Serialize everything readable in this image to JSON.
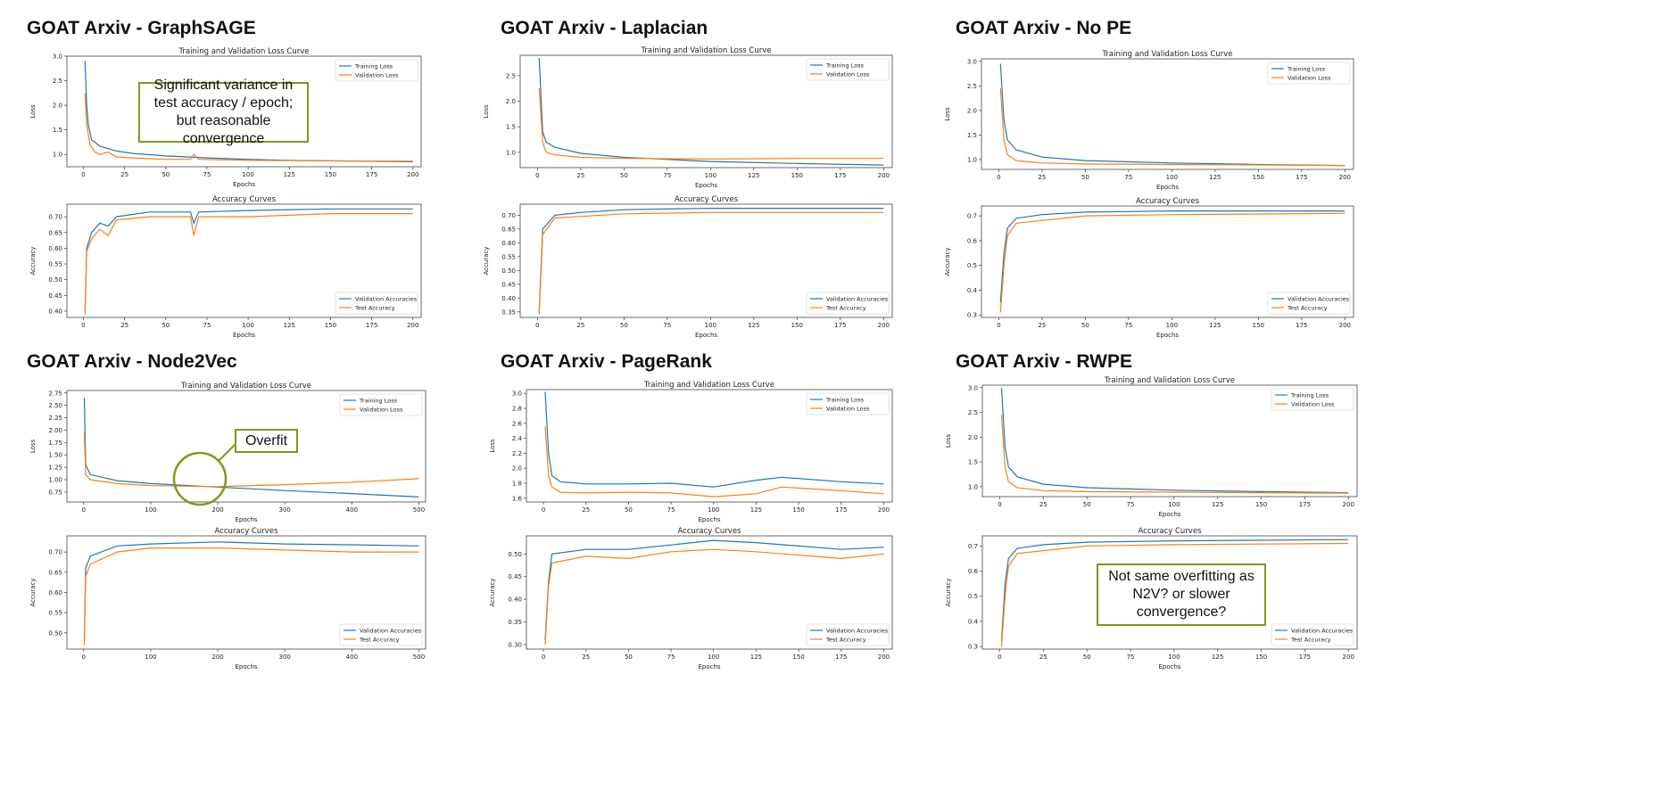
{
  "colors": {
    "series_a": "#1f77b4",
    "series_b": "#ff7f0e",
    "annotation_border": "#7a9a1a"
  },
  "panels": [
    {
      "title": "GOAT Arxiv - GraphSAGE"
    },
    {
      "title": "GOAT Arxiv - Laplacian"
    },
    {
      "title": "GOAT Arxiv - No PE"
    },
    {
      "title": "GOAT Arxiv - Node2Vec"
    },
    {
      "title": "GOAT Arxiv - PageRank"
    },
    {
      "title": "GOAT Arxiv - RWPE"
    }
  ],
  "annotations": {
    "graphsage": "Significant variance in test accuracy / epoch; but reasonable convergence",
    "node2vec": "Overfit",
    "rwpe": "Not same overfitting as N2V? or slower convergence?"
  },
  "chart_data": [
    {
      "panel": "GraphSAGE",
      "type": "line",
      "title": "Training and Validation Loss Curve",
      "xlabel": "Epochs",
      "ylabel": "Loss",
      "xlim": [
        -10,
        205
      ],
      "ylim": [
        0.75,
        3.0
      ],
      "xticks": [
        0,
        25,
        50,
        75,
        100,
        125,
        150,
        175,
        200
      ],
      "yticks": [
        1.0,
        1.5,
        2.0,
        2.5,
        3.0
      ],
      "legend": "top-right",
      "series": [
        {
          "name": "Training Loss",
          "x": [
            1,
            2,
            3,
            5,
            10,
            20,
            30,
            50,
            75,
            100,
            125,
            150,
            175,
            200
          ],
          "y": [
            2.9,
            2.0,
            1.6,
            1.3,
            1.17,
            1.07,
            1.02,
            0.97,
            0.93,
            0.9,
            0.88,
            0.87,
            0.86,
            0.85
          ]
        },
        {
          "name": "Validation Loss",
          "x": [
            1,
            2,
            4,
            7,
            10,
            15,
            20,
            30,
            50,
            65,
            67,
            70,
            100,
            150,
            200
          ],
          "y": [
            2.25,
            1.6,
            1.2,
            1.05,
            1.0,
            1.05,
            0.95,
            0.93,
            0.9,
            0.9,
            1.0,
            0.9,
            0.88,
            0.87,
            0.86
          ]
        }
      ]
    },
    {
      "panel": "GraphSAGE",
      "type": "line",
      "title": "Accuracy Curves",
      "xlabel": "Epochs",
      "ylabel": "Accuracy",
      "xlim": [
        -10,
        205
      ],
      "ylim": [
        0.38,
        0.74
      ],
      "xticks": [
        0,
        25,
        50,
        75,
        100,
        125,
        150,
        175,
        200
      ],
      "yticks": [
        0.4,
        0.45,
        0.5,
        0.55,
        0.6,
        0.65,
        0.7
      ],
      "legend": "bottom-right",
      "series": [
        {
          "name": "Validation Accuracies",
          "x": [
            1,
            2,
            5,
            10,
            15,
            20,
            40,
            65,
            67,
            70,
            100,
            150,
            200
          ],
          "y": [
            0.4,
            0.6,
            0.65,
            0.68,
            0.67,
            0.7,
            0.715,
            0.715,
            0.68,
            0.715,
            0.72,
            0.725,
            0.725
          ]
        },
        {
          "name": "Test Accuracy",
          "x": [
            1,
            2,
            5,
            10,
            15,
            20,
            40,
            65,
            67,
            70,
            100,
            150,
            200
          ],
          "y": [
            0.39,
            0.59,
            0.63,
            0.66,
            0.64,
            0.69,
            0.7,
            0.7,
            0.64,
            0.7,
            0.7,
            0.71,
            0.71
          ]
        }
      ]
    },
    {
      "panel": "Laplacian",
      "type": "line",
      "title": "Training and Validation Loss Curve",
      "xlabel": "Epochs",
      "ylabel": "Loss",
      "xlim": [
        -10,
        205
      ],
      "ylim": [
        0.7,
        2.9
      ],
      "xticks": [
        0,
        25,
        50,
        75,
        100,
        125,
        150,
        175,
        200
      ],
      "yticks": [
        1.0,
        1.5,
        2.0,
        2.5
      ],
      "legend": "top-right",
      "series": [
        {
          "name": "Training Loss",
          "x": [
            1,
            3,
            5,
            10,
            25,
            50,
            100,
            150,
            200
          ],
          "y": [
            2.85,
            1.4,
            1.2,
            1.1,
            0.98,
            0.9,
            0.82,
            0.78,
            0.75
          ]
        },
        {
          "name": "Validation Loss",
          "x": [
            1,
            3,
            5,
            10,
            25,
            50,
            100,
            150,
            200
          ],
          "y": [
            2.25,
            1.2,
            1.0,
            0.95,
            0.9,
            0.88,
            0.87,
            0.88,
            0.88
          ]
        }
      ]
    },
    {
      "panel": "Laplacian",
      "type": "line",
      "title": "Accuracy Curves",
      "xlabel": "Epochs",
      "ylabel": "Accuracy",
      "xlim": [
        -10,
        205
      ],
      "ylim": [
        0.33,
        0.74
      ],
      "xticks": [
        0,
        25,
        50,
        75,
        100,
        125,
        150,
        175,
        200
      ],
      "yticks": [
        0.35,
        0.4,
        0.45,
        0.5,
        0.55,
        0.6,
        0.65,
        0.7
      ],
      "legend": "bottom-right",
      "series": [
        {
          "name": "Validation Accuracies",
          "x": [
            1,
            3,
            10,
            25,
            50,
            100,
            200
          ],
          "y": [
            0.35,
            0.65,
            0.7,
            0.71,
            0.72,
            0.725,
            0.725
          ]
        },
        {
          "name": "Test Accuracy",
          "x": [
            1,
            3,
            10,
            50,
            100,
            200
          ],
          "y": [
            0.34,
            0.63,
            0.69,
            0.705,
            0.71,
            0.71
          ]
        }
      ]
    },
    {
      "panel": "No PE",
      "type": "line",
      "title": "Training and Validation Loss Curve",
      "xlabel": "Epochs",
      "ylabel": "Loss",
      "xlim": [
        -10,
        205
      ],
      "ylim": [
        0.8,
        3.05
      ],
      "xticks": [
        0,
        25,
        50,
        75,
        100,
        125,
        150,
        175,
        200
      ],
      "yticks": [
        1.0,
        1.5,
        2.0,
        2.5,
        3.0
      ],
      "legend": "top-right",
      "series": [
        {
          "name": "Training Loss",
          "x": [
            1,
            3,
            5,
            10,
            25,
            50,
            100,
            150,
            200
          ],
          "y": [
            2.95,
            1.8,
            1.4,
            1.2,
            1.05,
            0.98,
            0.93,
            0.9,
            0.88
          ]
        },
        {
          "name": "Validation Loss",
          "x": [
            1,
            3,
            5,
            10,
            25,
            50,
            100,
            150,
            200
          ],
          "y": [
            2.45,
            1.4,
            1.1,
            0.98,
            0.93,
            0.91,
            0.9,
            0.89,
            0.88
          ]
        }
      ]
    },
    {
      "panel": "No PE",
      "type": "line",
      "title": "Accuracy Curves",
      "xlabel": "Epochs",
      "ylabel": "Accuracy",
      "xlim": [
        -10,
        205
      ],
      "ylim": [
        0.29,
        0.74
      ],
      "xticks": [
        0,
        25,
        50,
        75,
        100,
        125,
        150,
        175,
        200
      ],
      "yticks": [
        0.3,
        0.4,
        0.5,
        0.6,
        0.7
      ],
      "legend": "bottom-right",
      "series": [
        {
          "name": "Validation Accuracies",
          "x": [
            1,
            3,
            5,
            10,
            25,
            50,
            100,
            200
          ],
          "y": [
            0.35,
            0.55,
            0.65,
            0.69,
            0.705,
            0.715,
            0.72,
            0.72
          ]
        },
        {
          "name": "Test Accuracy",
          "x": [
            1,
            3,
            5,
            10,
            50,
            100,
            200
          ],
          "y": [
            0.31,
            0.5,
            0.62,
            0.67,
            0.7,
            0.705,
            0.71
          ]
        }
      ]
    },
    {
      "panel": "Node2Vec",
      "type": "line",
      "title": "Training and Validation Loss Curve",
      "xlabel": "Epochs",
      "ylabel": "Loss",
      "xlim": [
        -25,
        510
      ],
      "ylim": [
        0.55,
        2.8
      ],
      "xticks": [
        0,
        100,
        200,
        300,
        400,
        500
      ],
      "yticks": [
        0.75,
        1.0,
        1.25,
        1.5,
        1.75,
        2.0,
        2.25,
        2.5,
        2.75
      ],
      "legend": "top-right",
      "series": [
        {
          "name": "Training Loss",
          "x": [
            1,
            3,
            10,
            50,
            100,
            200,
            300,
            400,
            500
          ],
          "y": [
            2.65,
            1.3,
            1.1,
            0.98,
            0.92,
            0.85,
            0.78,
            0.72,
            0.65
          ]
        },
        {
          "name": "Validation Loss",
          "x": [
            1,
            3,
            10,
            50,
            100,
            200,
            300,
            400,
            500
          ],
          "y": [
            1.95,
            1.1,
            1.0,
            0.92,
            0.88,
            0.86,
            0.9,
            0.95,
            1.02
          ]
        }
      ]
    },
    {
      "panel": "Node2Vec",
      "type": "line",
      "title": "Accuracy Curves",
      "xlabel": "Epochs",
      "ylabel": "Accuracy",
      "xlim": [
        -25,
        510
      ],
      "ylim": [
        0.46,
        0.74
      ],
      "xticks": [
        0,
        100,
        200,
        300,
        400,
        500
      ],
      "yticks": [
        0.5,
        0.55,
        0.6,
        0.65,
        0.7
      ],
      "legend": "bottom-right",
      "series": [
        {
          "name": "Validation Accuracies",
          "x": [
            1,
            3,
            10,
            50,
            100,
            200,
            300,
            400,
            500
          ],
          "y": [
            0.48,
            0.66,
            0.69,
            0.715,
            0.72,
            0.725,
            0.72,
            0.718,
            0.715
          ]
        },
        {
          "name": "Test Accuracy",
          "x": [
            1,
            3,
            10,
            50,
            100,
            200,
            300,
            400,
            500
          ],
          "y": [
            0.47,
            0.64,
            0.67,
            0.7,
            0.71,
            0.71,
            0.705,
            0.7,
            0.7
          ]
        }
      ]
    },
    {
      "panel": "PageRank",
      "type": "line",
      "title": "Training and Validation Loss Curve",
      "xlabel": "Epochs",
      "ylabel": "Loss",
      "xlim": [
        -10,
        205
      ],
      "ylim": [
        1.55,
        3.05
      ],
      "xticks": [
        0,
        25,
        50,
        75,
        100,
        125,
        150,
        175,
        200
      ],
      "yticks": [
        1.6,
        1.8,
        2.0,
        2.2,
        2.4,
        2.6,
        2.8,
        3.0
      ],
      "legend": "top-right",
      "series": [
        {
          "name": "Training Loss",
          "x": [
            1,
            3,
            5,
            10,
            25,
            50,
            75,
            100,
            125,
            140,
            175,
            200
          ],
          "y": [
            3.02,
            2.2,
            1.9,
            1.82,
            1.79,
            1.79,
            1.8,
            1.75,
            1.84,
            1.88,
            1.82,
            1.79
          ]
        },
        {
          "name": "Validation Loss",
          "x": [
            1,
            3,
            5,
            10,
            25,
            50,
            75,
            100,
            125,
            140,
            175,
            200
          ],
          "y": [
            2.56,
            1.9,
            1.75,
            1.68,
            1.67,
            1.68,
            1.67,
            1.62,
            1.66,
            1.75,
            1.7,
            1.66
          ]
        }
      ]
    },
    {
      "panel": "PageRank",
      "type": "line",
      "title": "Accuracy Curves",
      "xlabel": "Epochs",
      "ylabel": "Accuracy",
      "xlim": [
        -10,
        205
      ],
      "ylim": [
        0.29,
        0.54
      ],
      "xticks": [
        0,
        25,
        50,
        75,
        100,
        125,
        150,
        175,
        200
      ],
      "yticks": [
        0.3,
        0.35,
        0.4,
        0.45,
        0.5
      ],
      "legend": "bottom-right",
      "series": [
        {
          "name": "Validation Accuracies",
          "x": [
            1,
            3,
            5,
            25,
            50,
            75,
            100,
            125,
            175,
            200
          ],
          "y": [
            0.31,
            0.44,
            0.5,
            0.51,
            0.51,
            0.52,
            0.53,
            0.525,
            0.51,
            0.515
          ]
        },
        {
          "name": "Test Accuracy",
          "x": [
            1,
            3,
            5,
            25,
            50,
            75,
            100,
            125,
            175,
            200
          ],
          "y": [
            0.3,
            0.43,
            0.48,
            0.495,
            0.49,
            0.505,
            0.51,
            0.505,
            0.49,
            0.5
          ]
        }
      ]
    },
    {
      "panel": "RWPE",
      "type": "line",
      "title": "Training and Validation Loss Curve",
      "xlabel": "Epochs",
      "ylabel": "Loss",
      "xlim": [
        -10,
        205
      ],
      "ylim": [
        0.8,
        3.05
      ],
      "xticks": [
        0,
        25,
        50,
        75,
        100,
        125,
        150,
        175,
        200
      ],
      "yticks": [
        1.0,
        1.5,
        2.0,
        2.5,
        3.0
      ],
      "legend": "top-right",
      "series": [
        {
          "name": "Training Loss",
          "x": [
            1,
            3,
            5,
            10,
            25,
            50,
            100,
            150,
            200
          ],
          "y": [
            3.0,
            1.8,
            1.4,
            1.2,
            1.05,
            0.98,
            0.93,
            0.9,
            0.88
          ]
        },
        {
          "name": "Validation Loss",
          "x": [
            1,
            3,
            5,
            10,
            25,
            50,
            100,
            150,
            200
          ],
          "y": [
            2.45,
            1.4,
            1.1,
            0.98,
            0.92,
            0.9,
            0.89,
            0.88,
            0.87
          ]
        }
      ]
    },
    {
      "panel": "RWPE",
      "type": "line",
      "title": "Accuracy Curves",
      "xlabel": "Epochs",
      "ylabel": "Accuracy",
      "xlim": [
        -10,
        205
      ],
      "ylim": [
        0.29,
        0.74
      ],
      "xticks": [
        0,
        25,
        50,
        75,
        100,
        125,
        150,
        175,
        200
      ],
      "yticks": [
        0.3,
        0.4,
        0.5,
        0.6,
        0.7
      ],
      "legend": "bottom-right",
      "series": [
        {
          "name": "Validation Accuracies",
          "x": [
            1,
            3,
            5,
            10,
            25,
            50,
            100,
            200
          ],
          "y": [
            0.32,
            0.55,
            0.65,
            0.69,
            0.705,
            0.715,
            0.72,
            0.725
          ]
        },
        {
          "name": "Test Accuracy",
          "x": [
            1,
            3,
            5,
            10,
            50,
            100,
            200
          ],
          "y": [
            0.3,
            0.5,
            0.62,
            0.67,
            0.7,
            0.705,
            0.71
          ]
        }
      ]
    }
  ]
}
